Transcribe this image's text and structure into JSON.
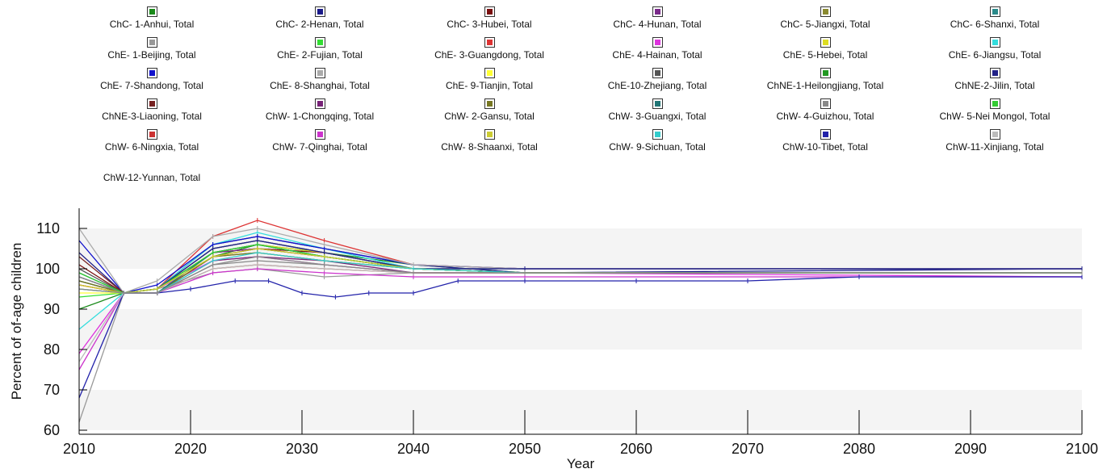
{
  "chart_data": {
    "type": "line",
    "xlabel": "Year",
    "ylabel": "Percent of of-age children",
    "xlim": [
      2010,
      2100
    ],
    "ylim": [
      59,
      115
    ],
    "xticks": [
      2010,
      2020,
      2030,
      2040,
      2050,
      2060,
      2070,
      2080,
      2090,
      2100
    ],
    "yticks": [
      60,
      70,
      80,
      90,
      100,
      110
    ],
    "grid": "alternating horizontal bands",
    "legend_position": "top",
    "legend_rows": [
      [
        "ChC- 1-Anhui, Total",
        "ChC- 2-Henan, Total",
        "ChC- 3-Hubei, Total",
        "ChC- 4-Hunan, Total",
        "ChC- 5-Jiangxi, Total",
        "ChC- 6-Shanxi, Total"
      ],
      [
        "ChE- 1-Beijing, Total",
        "ChE- 2-Fujian, Total",
        "ChE- 3-Guangdong, Total",
        "ChE- 4-Hainan, Total",
        "ChE- 5-Hebei, Total",
        "ChE- 6-Jiangsu, Total"
      ],
      [
        "ChE- 7-Shandong, Total",
        "ChE- 8-Shanghai, Total",
        "ChE- 9-Tianjin, Total",
        "ChE-10-Zhejiang, Total",
        "ChNE-1-Heilongjiang, Total",
        "ChNE-2-Jilin, Total"
      ],
      [
        "ChNE-3-Liaoning, Total",
        "ChW- 1-Chongqing, Total",
        "ChW- 2-Gansu, Total",
        "ChW- 3-Guangxi, Total",
        "ChW- 4-Guizhou, Total",
        "ChW- 5-Nei Mongol, Total"
      ],
      [
        "ChW- 6-Ningxia, Total",
        "ChW- 7-Qinghai, Total",
        "ChW- 8-Shaanxi, Total",
        "ChW- 9-Sichuan, Total",
        "ChW-10-Tibet, Total",
        "ChW-11-Xinjiang, Total"
      ],
      [
        "ChW-12-Yunnan, Total"
      ]
    ],
    "legend_colors": [
      [
        "#1a8a1a",
        "#1a1a8a",
        "#7a0f0f",
        "#7a2a8a",
        "#8a8a30",
        "#2a8a8a"
      ],
      [
        "#999999",
        "#33dd33",
        "#dd3333",
        "#dd33dd",
        "#dddd22",
        "#33dddd"
      ],
      [
        "#1111cc",
        "#aaaaaa",
        "#ffff33",
        "#555555",
        "#229922",
        "#222288"
      ],
      [
        "#772222",
        "#772277",
        "#777722",
        "#227777",
        "#888888",
        "#33cc33"
      ],
      [
        "#cc3333",
        "#cc33cc",
        "#cccc33",
        "#33cccc",
        "#2222aa",
        "#bbbbbb"
      ],
      [
        "#888888"
      ]
    ],
    "series": [
      {
        "name": "ChC- 1-Anhui, Total",
        "color": "#1a8a1a",
        "x": [
          2010,
          2014,
          2017,
          2022,
          2026,
          2032,
          2040,
          2050,
          2100
        ],
        "y": [
          90,
          94,
          94,
          103,
          106,
          104,
          101,
          99,
          99
        ]
      },
      {
        "name": "ChC- 2-Henan, Total",
        "color": "#1a1a8a",
        "x": [
          2010,
          2014,
          2017,
          2022,
          2026,
          2032,
          2040,
          2050,
          2100
        ],
        "y": [
          97,
          94,
          95,
          106,
          108,
          105,
          101,
          99,
          100
        ]
      },
      {
        "name": "ChC- 3-Hubei, Total",
        "color": "#7a0f0f",
        "x": [
          2010,
          2014,
          2017,
          2022,
          2026,
          2032,
          2040,
          2050,
          2100
        ],
        "y": [
          101,
          94,
          94,
          104,
          105,
          104,
          100,
          100,
          100
        ]
      },
      {
        "name": "ChC- 4-Hunan, Total",
        "color": "#7a2a8a",
        "x": [
          2010,
          2014,
          2017,
          2022,
          2026,
          2032,
          2040,
          2050,
          2100
        ],
        "y": [
          96,
          94,
          95,
          104,
          105,
          103,
          100,
          100,
          100
        ]
      },
      {
        "name": "ChC- 5-Jiangxi, Total",
        "color": "#8a8a30",
        "x": [
          2010,
          2014,
          2017,
          2022,
          2026,
          2032,
          2040,
          2050,
          2100
        ],
        "y": [
          95,
          94,
          94,
          103,
          104,
          102,
          100,
          99,
          99
        ]
      },
      {
        "name": "ChC- 6-Shanxi, Total",
        "color": "#2a8a8a",
        "x": [
          2010,
          2014,
          2017,
          2022,
          2026,
          2032,
          2040,
          2050,
          2100
        ],
        "y": [
          98,
          94,
          95,
          105,
          107,
          104,
          100,
          99,
          99
        ]
      },
      {
        "name": "ChE- 1-Beijing, Total",
        "color": "#999999",
        "x": [
          2010,
          2014,
          2017,
          2022,
          2026,
          2032,
          2040,
          2050,
          2100
        ],
        "y": [
          62,
          94,
          95,
          99,
          100,
          98,
          99,
          99,
          99
        ]
      },
      {
        "name": "ChE- 2-Fujian, Total",
        "color": "#33dd33",
        "x": [
          2010,
          2014,
          2017,
          2022,
          2026,
          2032,
          2040,
          2050,
          2100
        ],
        "y": [
          93,
          94,
          94,
          104,
          106,
          103,
          100,
          99,
          99
        ]
      },
      {
        "name": "ChE- 3-Guangdong, Total",
        "color": "#dd3333",
        "x": [
          2010,
          2014,
          2017,
          2022,
          2026,
          2032,
          2040,
          2050,
          2100
        ],
        "y": [
          96,
          94,
          95,
          108,
          112,
          107,
          101,
          100,
          100
        ]
      },
      {
        "name": "ChE- 4-Hainan, Total",
        "color": "#dd33dd",
        "x": [
          2010,
          2014,
          2017,
          2022,
          2026,
          2032,
          2040,
          2050,
          2100
        ],
        "y": [
          79,
          94,
          95,
          102,
          103,
          101,
          99,
          99,
          98
        ]
      },
      {
        "name": "ChE- 5-Hebei, Total",
        "color": "#dddd22",
        "x": [
          2010,
          2014,
          2017,
          2022,
          2026,
          2032,
          2040,
          2050,
          2100
        ],
        "y": [
          96,
          94,
          95,
          104,
          106,
          104,
          100,
          99,
          99
        ]
      },
      {
        "name": "ChE- 6-Jiangsu, Total",
        "color": "#33dddd",
        "x": [
          2010,
          2014,
          2017,
          2022,
          2026,
          2032,
          2040,
          2050,
          2100
        ],
        "y": [
          85,
          94,
          95,
          106,
          109,
          105,
          100,
          100,
          100
        ]
      },
      {
        "name": "ChE- 7-Shandong, Total",
        "color": "#1111cc",
        "x": [
          2010,
          2014,
          2017,
          2022,
          2026,
          2032,
          2040,
          2050,
          2100
        ],
        "y": [
          107,
          94,
          96,
          106,
          108,
          105,
          101,
          100,
          100
        ]
      },
      {
        "name": "ChE- 8-Shanghai, Total",
        "color": "#aaaaaa",
        "x": [
          2010,
          2014,
          2017,
          2022,
          2026,
          2032,
          2040,
          2050,
          2100
        ],
        "y": [
          110,
          94,
          97,
          108,
          110,
          106,
          101,
          100,
          100
        ]
      },
      {
        "name": "ChE- 9-Tianjin, Total",
        "color": "#ffff33",
        "x": [
          2010,
          2014,
          2017,
          2022,
          2026,
          2032,
          2040,
          2050,
          2100
        ],
        "y": [
          94,
          94,
          95,
          103,
          105,
          103,
          100,
          99,
          99
        ]
      },
      {
        "name": "ChE-10-Zhejiang, Total",
        "color": "#555555",
        "x": [
          2010,
          2014,
          2017,
          2022,
          2026,
          2032,
          2040,
          2050,
          2100
        ],
        "y": [
          100,
          94,
          95,
          105,
          107,
          104,
          100,
          99,
          99
        ]
      },
      {
        "name": "ChNE-1-Heilongjiang, Total",
        "color": "#229922",
        "x": [
          2010,
          2014,
          2017,
          2022,
          2026,
          2032,
          2040,
          2050,
          2100
        ],
        "y": [
          97,
          94,
          95,
          104,
          106,
          103,
          100,
          99,
          99
        ]
      },
      {
        "name": "ChNE-2-Jilin, Total",
        "color": "#222288",
        "x": [
          2010,
          2014,
          2017,
          2022,
          2026,
          2032,
          2040,
          2050,
          2100
        ],
        "y": [
          104,
          94,
          95,
          105,
          107,
          104,
          100,
          100,
          100
        ]
      },
      {
        "name": "ChNE-3-Liaoning, Total",
        "color": "#772222",
        "x": [
          2010,
          2014,
          2017,
          2022,
          2026,
          2032,
          2040,
          2050,
          2100
        ],
        "y": [
          103,
          94,
          94,
          103,
          105,
          103,
          100,
          99,
          99
        ]
      },
      {
        "name": "ChW- 1-Chongqing, Total",
        "color": "#772277",
        "x": [
          2010,
          2014,
          2017,
          2022,
          2026,
          2032,
          2040,
          2050,
          2100
        ],
        "y": [
          98,
          94,
          94,
          102,
          103,
          102,
          99,
          99,
          99
        ]
      },
      {
        "name": "ChW- 2-Gansu, Total",
        "color": "#777722",
        "x": [
          2010,
          2014,
          2017,
          2022,
          2026,
          2032,
          2040,
          2050,
          2100
        ],
        "y": [
          97,
          94,
          94,
          103,
          104,
          102,
          100,
          99,
          99
        ]
      },
      {
        "name": "ChW- 3-Guangxi, Total",
        "color": "#227777",
        "x": [
          2010,
          2014,
          2017,
          2022,
          2026,
          2032,
          2040,
          2050,
          2100
        ],
        "y": [
          99,
          94,
          94,
          104,
          106,
          103,
          100,
          99,
          99
        ]
      },
      {
        "name": "ChW- 4-Guizhou, Total",
        "color": "#888888",
        "x": [
          2010,
          2014,
          2017,
          2022,
          2026,
          2032,
          2040,
          2050,
          2100
        ],
        "y": [
          98,
          94,
          94,
          101,
          102,
          101,
          99,
          99,
          99
        ]
      },
      {
        "name": "ChW- 5-Nei Mongol, Total",
        "color": "#33cc33",
        "x": [
          2010,
          2014,
          2017,
          2022,
          2026,
          2032,
          2040,
          2050,
          2100
        ],
        "y": [
          99,
          94,
          95,
          104,
          106,
          103,
          100,
          99,
          99
        ]
      },
      {
        "name": "ChW- 6-Ningxia, Total",
        "color": "#cc3333",
        "x": [
          2010,
          2014,
          2017,
          2022,
          2026,
          2032,
          2040,
          2050,
          2100
        ],
        "y": [
          96,
          94,
          94,
          100,
          101,
          100,
          99,
          99,
          99
        ]
      },
      {
        "name": "ChW- 7-Qinghai, Total",
        "color": "#cc33cc",
        "x": [
          2010,
          2014,
          2017,
          2022,
          2026,
          2032,
          2040,
          2050,
          2100
        ],
        "y": [
          75,
          94,
          94,
          99,
          100,
          99,
          98,
          98,
          98
        ]
      },
      {
        "name": "ChW- 8-Shaanxi, Total",
        "color": "#cccc33",
        "x": [
          2010,
          2014,
          2017,
          2022,
          2026,
          2032,
          2040,
          2050,
          2100
        ],
        "y": [
          96,
          94,
          95,
          103,
          105,
          103,
          100,
          99,
          99
        ]
      },
      {
        "name": "ChW- 9-Sichuan, Total",
        "color": "#33cccc",
        "x": [
          2010,
          2014,
          2017,
          2022,
          2026,
          2032,
          2040,
          2050,
          2100
        ],
        "y": [
          95,
          94,
          94,
          102,
          104,
          102,
          100,
          99,
          99
        ]
      },
      {
        "name": "ChW-10-Tibet, Total",
        "color": "#2222aa",
        "x": [
          2010,
          2014,
          2017,
          2020,
          2024,
          2027,
          2030,
          2033,
          2036,
          2040,
          2044,
          2050,
          2060,
          2070,
          2080,
          2100
        ],
        "y": [
          68,
          94,
          94,
          95,
          97,
          97,
          94,
          93,
          94,
          94,
          97,
          97,
          97,
          97,
          98,
          98
        ]
      },
      {
        "name": "ChW-11-Xinjiang, Total",
        "color": "#bbbbbb",
        "x": [
          2010,
          2014,
          2017,
          2022,
          2026,
          2032,
          2040,
          2050,
          2100
        ],
        "y": [
          77,
          94,
          94,
          100,
          101,
          100,
          99,
          99,
          99
        ]
      },
      {
        "name": "ChW-12-Yunnan, Total",
        "color": "#888888",
        "x": [
          2010,
          2014,
          2017,
          2022,
          2026,
          2032,
          2040,
          2050,
          2100
        ],
        "y": [
          95,
          94,
          94,
          101,
          103,
          101,
          99,
          99,
          99
        ]
      }
    ]
  }
}
